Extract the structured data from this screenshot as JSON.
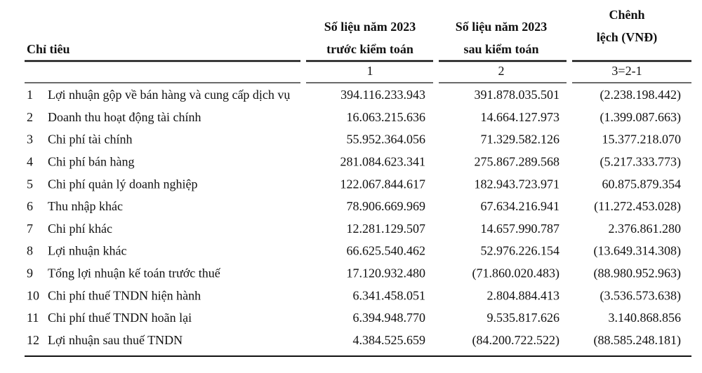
{
  "table": {
    "header": [
      [
        "Chỉ tiêu"
      ],
      [
        "Số liệu năm 2023",
        "trước kiểm toán"
      ],
      [
        "Số liệu năm 2023",
        "sau kiểm toán"
      ],
      [
        "Chênh",
        "lệch (VNĐ)"
      ]
    ],
    "subheader": [
      "1",
      "2",
      "3=2-1"
    ],
    "rows": [
      [
        "1",
        "Lợi nhuận gộp về bán hàng và cung cấp dịch vụ",
        "394.116.233.943",
        "391.878.035.501",
        "(2.238.198.442)"
      ],
      [
        "2",
        "Doanh thu hoạt động tài chính",
        "16.063.215.636",
        "14.664.127.973",
        "(1.399.087.663)"
      ],
      [
        "3",
        "Chi phí tài chính",
        "55.952.364.056",
        "71.329.582.126",
        "15.377.218.070"
      ],
      [
        "4",
        "Chi phí bán hàng",
        "281.084.623.341",
        "275.867.289.568",
        "(5.217.333.773)"
      ],
      [
        "5",
        "Chi phí quản lý doanh nghiệp",
        "122.067.844.617",
        "182.943.723.971",
        "60.875.879.354"
      ],
      [
        "6",
        "Thu nhập khác",
        "78.906.669.969",
        "67.634.216.941",
        "(11.272.453.028)"
      ],
      [
        "7",
        "Chi phí khác",
        "12.281.129.507",
        "14.657.990.787",
        "2.376.861.280"
      ],
      [
        "8",
        "Lợi nhuận khác",
        "66.625.540.462",
        "52.976.226.154",
        "(13.649.314.308)"
      ],
      [
        "9",
        "Tổng lợi nhuận kế toán trước thuế",
        "17.120.932.480",
        "(71.860.020.483)",
        "(88.980.952.963)"
      ],
      [
        "10",
        "Chi phí thuế TNDN hiện hành",
        "6.341.458.051",
        "2.804.884.413",
        "(3.536.573.638)"
      ],
      [
        "11",
        "Chi phí thuế TNDN hoãn lại",
        "6.394.948.770",
        "9.535.817.626",
        "3.140.868.856"
      ],
      [
        "12",
        "Lợi nhuận sau thuế TNDN",
        "4.384.525.659",
        "(84.200.722.522)",
        "(88.585.248.181)"
      ]
    ]
  }
}
